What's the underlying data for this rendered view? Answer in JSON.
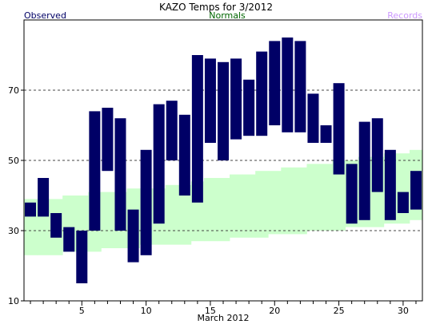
{
  "chart_data": {
    "type": "bar",
    "title": "KAZO Temps for  3/2012",
    "xlabel": "March 2012",
    "ylabel": "",
    "legend": {
      "observed": "Observed",
      "normals": "Normals",
      "records": "Records"
    },
    "colors": {
      "observed": "#000066",
      "normals_band": "#ccffcc",
      "normals_text": "#006600",
      "records_text": "#cc99ff",
      "observed_text": "#000066",
      "gridline": "#444444"
    },
    "xlim": [
      1,
      31
    ],
    "ylim": [
      10,
      90
    ],
    "y_ticks": [
      10,
      30,
      50,
      70
    ],
    "x_tick_labels": [
      "5",
      "10",
      "15",
      "20",
      "25",
      "30"
    ],
    "grid": "dashed horizontal at 30, 50, 70",
    "series": [
      {
        "name": "Observed",
        "days": [
          1,
          2,
          3,
          4,
          5,
          6,
          7,
          8,
          9,
          10,
          11,
          12,
          13,
          14,
          15,
          16,
          17,
          18,
          19,
          20,
          21,
          22,
          23,
          24,
          25,
          26,
          27,
          28,
          29,
          30,
          31
        ],
        "highs": [
          38,
          45,
          35,
          31,
          30,
          64,
          65,
          62,
          36,
          53,
          66,
          67,
          63,
          80,
          79,
          78,
          79,
          73,
          81,
          84,
          85,
          84,
          69,
          60,
          72,
          49,
          61,
          62,
          53,
          41,
          47
        ],
        "lows": [
          34,
          34,
          28,
          24,
          15,
          30,
          47,
          30,
          21,
          23,
          32,
          50,
          40,
          38,
          55,
          50,
          56,
          57,
          57,
          60,
          58,
          58,
          55,
          55,
          46,
          32,
          33,
          41,
          33,
          35,
          36
        ]
      },
      {
        "name": "Normals",
        "days": [
          1,
          2,
          3,
          4,
          5,
          6,
          7,
          8,
          9,
          10,
          11,
          12,
          13,
          14,
          15,
          16,
          17,
          18,
          19,
          20,
          21,
          22,
          23,
          24,
          25,
          26,
          27,
          28,
          29,
          30,
          31
        ],
        "highs": [
          39,
          39,
          39,
          40,
          40,
          41,
          41,
          41,
          42,
          42,
          42,
          43,
          43,
          44,
          45,
          45,
          46,
          46,
          47,
          47,
          48,
          48,
          49,
          49,
          50,
          50,
          51,
          51,
          52,
          52,
          53
        ],
        "lows": [
          23,
          23,
          23,
          24,
          24,
          24,
          25,
          25,
          25,
          26,
          26,
          26,
          26,
          27,
          27,
          27,
          28,
          28,
          28,
          29,
          29,
          29,
          30,
          30,
          30,
          31,
          31,
          31,
          32,
          32,
          33
        ]
      }
    ]
  }
}
